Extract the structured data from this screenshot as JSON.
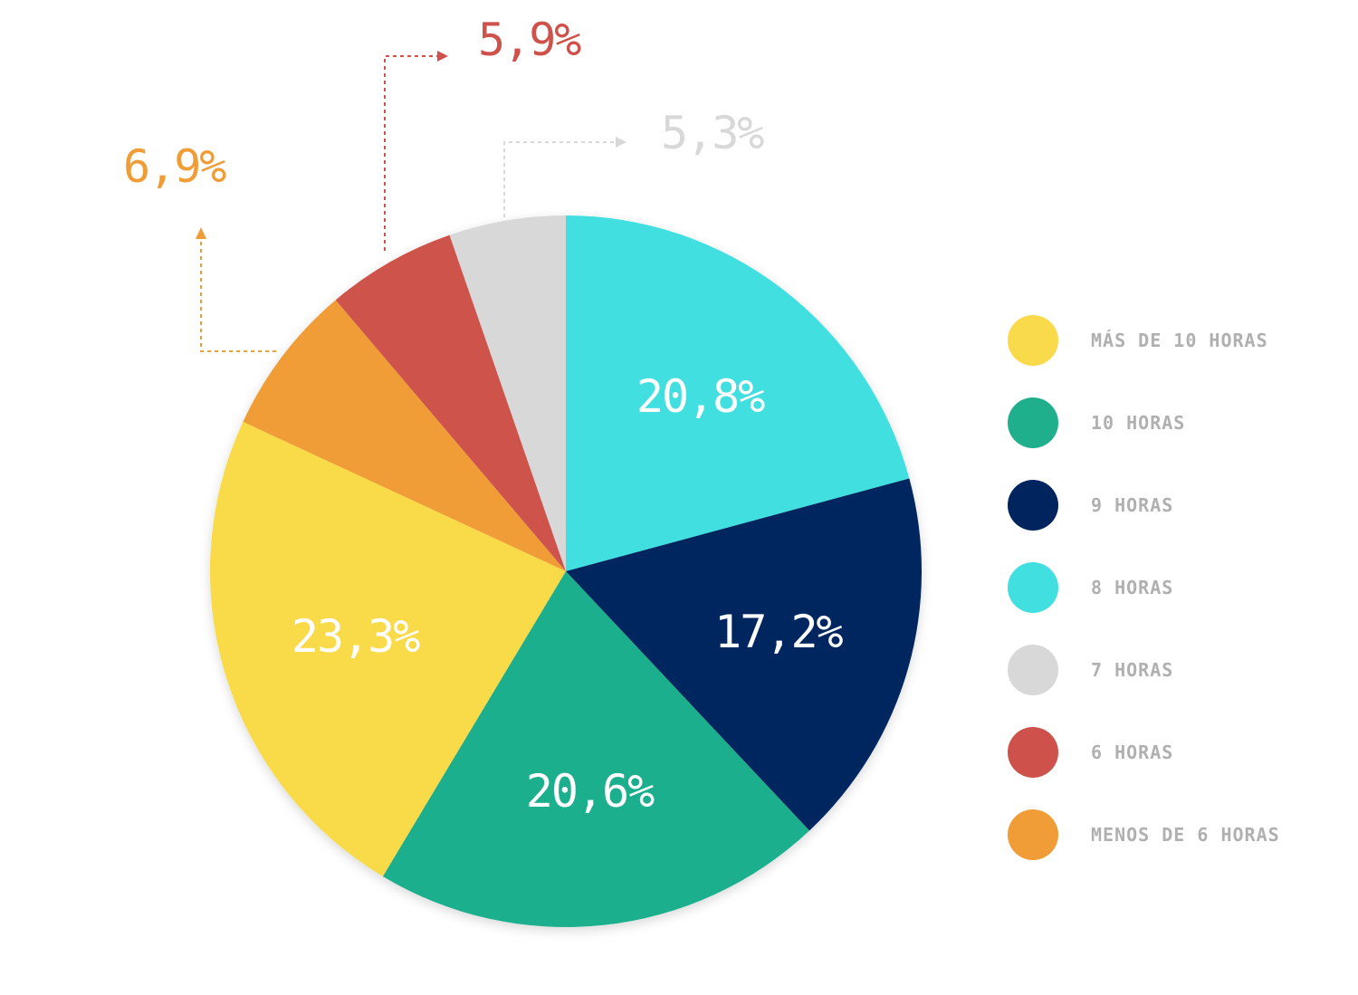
{
  "chart_data": {
    "type": "pie",
    "title": "",
    "start": "top",
    "direction": "clockwise",
    "slices": [
      {
        "label": "8 HORAS",
        "value": 20.8,
        "display": "20,8%",
        "color": "#42DFE0"
      },
      {
        "label": "9 HORAS",
        "value": 17.2,
        "display": "17,2%",
        "color": "#00255E"
      },
      {
        "label": "10 HORAS",
        "value": 20.6,
        "display": "20,6%",
        "color": "#1FAF8D"
      },
      {
        "label": "MÁS DE 10 HORAS",
        "value": 23.3,
        "display": "23,3%",
        "color": "#F9DA4A"
      },
      {
        "label": "MENOS DE 6 HORAS",
        "value": 6.9,
        "display": "6,9%",
        "color": "#F09D38"
      },
      {
        "label": "6 HORAS",
        "value": 5.9,
        "display": "5,9%",
        "color": "#CE524B"
      },
      {
        "label": "7 HORAS",
        "value": 5.3,
        "display": "5,3%",
        "color": "#D8D8D8"
      }
    ],
    "legend": {
      "placement": "right",
      "entries": [
        {
          "label": "MÁS DE 10 HORAS",
          "color": "#F9DA4A"
        },
        {
          "label": "10 HORAS",
          "color": "#1FAF8D"
        },
        {
          "label": "9 HORAS",
          "color": "#00255E"
        },
        {
          "label": "8 HORAS",
          "color": "#42DFE0"
        },
        {
          "label": "7 HORAS",
          "color": "#D8D8D8"
        },
        {
          "label": "6 HORAS",
          "color": "#CE524B"
        },
        {
          "label": "MENOS DE 6 HORAS",
          "color": "#F09D38"
        }
      ]
    }
  }
}
